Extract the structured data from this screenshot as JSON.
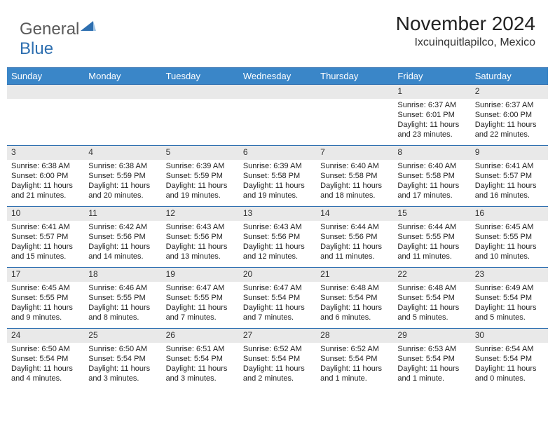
{
  "logo": {
    "text1": "General",
    "text2": "Blue"
  },
  "title": "November 2024",
  "location": "Ixcuinquitlapilco, Mexico",
  "colors": {
    "header_bg": "#3a86c8",
    "border": "#2e6fb0",
    "daynum_bg": "#e9e9e9",
    "text": "#222222"
  },
  "dayHeaders": [
    "Sunday",
    "Monday",
    "Tuesday",
    "Wednesday",
    "Thursday",
    "Friday",
    "Saturday"
  ],
  "weeks": [
    [
      null,
      null,
      null,
      null,
      null,
      {
        "n": "1",
        "sr": "6:37 AM",
        "ss": "6:01 PM",
        "dl": "11 hours and 23 minutes."
      },
      {
        "n": "2",
        "sr": "6:37 AM",
        "ss": "6:00 PM",
        "dl": "11 hours and 22 minutes."
      }
    ],
    [
      {
        "n": "3",
        "sr": "6:38 AM",
        "ss": "6:00 PM",
        "dl": "11 hours and 21 minutes."
      },
      {
        "n": "4",
        "sr": "6:38 AM",
        "ss": "5:59 PM",
        "dl": "11 hours and 20 minutes."
      },
      {
        "n": "5",
        "sr": "6:39 AM",
        "ss": "5:59 PM",
        "dl": "11 hours and 19 minutes."
      },
      {
        "n": "6",
        "sr": "6:39 AM",
        "ss": "5:58 PM",
        "dl": "11 hours and 19 minutes."
      },
      {
        "n": "7",
        "sr": "6:40 AM",
        "ss": "5:58 PM",
        "dl": "11 hours and 18 minutes."
      },
      {
        "n": "8",
        "sr": "6:40 AM",
        "ss": "5:58 PM",
        "dl": "11 hours and 17 minutes."
      },
      {
        "n": "9",
        "sr": "6:41 AM",
        "ss": "5:57 PM",
        "dl": "11 hours and 16 minutes."
      }
    ],
    [
      {
        "n": "10",
        "sr": "6:41 AM",
        "ss": "5:57 PM",
        "dl": "11 hours and 15 minutes."
      },
      {
        "n": "11",
        "sr": "6:42 AM",
        "ss": "5:56 PM",
        "dl": "11 hours and 14 minutes."
      },
      {
        "n": "12",
        "sr": "6:43 AM",
        "ss": "5:56 PM",
        "dl": "11 hours and 13 minutes."
      },
      {
        "n": "13",
        "sr": "6:43 AM",
        "ss": "5:56 PM",
        "dl": "11 hours and 12 minutes."
      },
      {
        "n": "14",
        "sr": "6:44 AM",
        "ss": "5:56 PM",
        "dl": "11 hours and 11 minutes."
      },
      {
        "n": "15",
        "sr": "6:44 AM",
        "ss": "5:55 PM",
        "dl": "11 hours and 11 minutes."
      },
      {
        "n": "16",
        "sr": "6:45 AM",
        "ss": "5:55 PM",
        "dl": "11 hours and 10 minutes."
      }
    ],
    [
      {
        "n": "17",
        "sr": "6:45 AM",
        "ss": "5:55 PM",
        "dl": "11 hours and 9 minutes."
      },
      {
        "n": "18",
        "sr": "6:46 AM",
        "ss": "5:55 PM",
        "dl": "11 hours and 8 minutes."
      },
      {
        "n": "19",
        "sr": "6:47 AM",
        "ss": "5:55 PM",
        "dl": "11 hours and 7 minutes."
      },
      {
        "n": "20",
        "sr": "6:47 AM",
        "ss": "5:54 PM",
        "dl": "11 hours and 7 minutes."
      },
      {
        "n": "21",
        "sr": "6:48 AM",
        "ss": "5:54 PM",
        "dl": "11 hours and 6 minutes."
      },
      {
        "n": "22",
        "sr": "6:48 AM",
        "ss": "5:54 PM",
        "dl": "11 hours and 5 minutes."
      },
      {
        "n": "23",
        "sr": "6:49 AM",
        "ss": "5:54 PM",
        "dl": "11 hours and 5 minutes."
      }
    ],
    [
      {
        "n": "24",
        "sr": "6:50 AM",
        "ss": "5:54 PM",
        "dl": "11 hours and 4 minutes."
      },
      {
        "n": "25",
        "sr": "6:50 AM",
        "ss": "5:54 PM",
        "dl": "11 hours and 3 minutes."
      },
      {
        "n": "26",
        "sr": "6:51 AM",
        "ss": "5:54 PM",
        "dl": "11 hours and 3 minutes."
      },
      {
        "n": "27",
        "sr": "6:52 AM",
        "ss": "5:54 PM",
        "dl": "11 hours and 2 minutes."
      },
      {
        "n": "28",
        "sr": "6:52 AM",
        "ss": "5:54 PM",
        "dl": "11 hours and 1 minute."
      },
      {
        "n": "29",
        "sr": "6:53 AM",
        "ss": "5:54 PM",
        "dl": "11 hours and 1 minute."
      },
      {
        "n": "30",
        "sr": "6:54 AM",
        "ss": "5:54 PM",
        "dl": "11 hours and 0 minutes."
      }
    ]
  ],
  "labels": {
    "sunrise": "Sunrise:",
    "sunset": "Sunset:",
    "daylight": "Daylight:"
  }
}
